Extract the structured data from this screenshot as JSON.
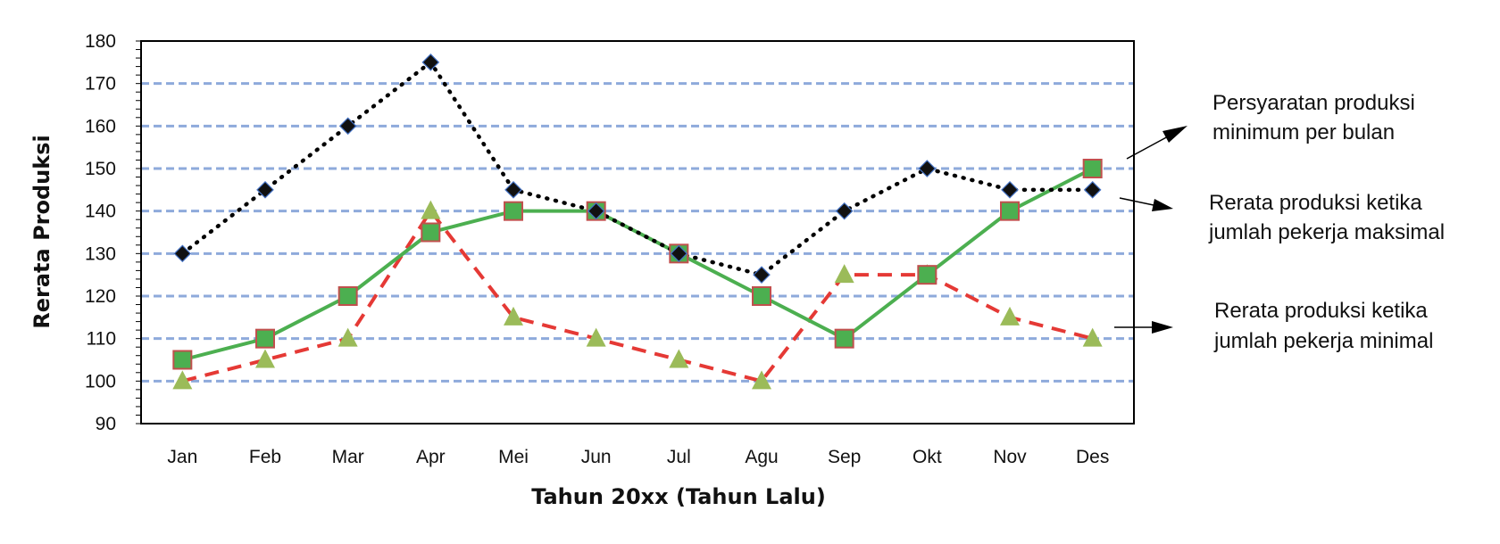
{
  "chart_data": {
    "type": "line",
    "title": "",
    "xlabel": "Tahun 20xx (Tahun Lalu)",
    "ylabel": "Rerata Produksi",
    "ylim": [
      90,
      180
    ],
    "yticks": [
      90,
      100,
      110,
      120,
      130,
      140,
      150,
      160,
      170,
      180
    ],
    "grid": true,
    "categories": [
      "Jan",
      "Feb",
      "Mar",
      "Apr",
      "Mei",
      "Jun",
      "Jul",
      "Agu",
      "Sep",
      "Okt",
      "Nov",
      "Des"
    ],
    "series": [
      {
        "values": [
          130,
          145,
          160,
          175,
          145,
          140,
          130,
          125,
          140,
          150,
          145,
          145
        ],
        "color": "#000000",
        "line": "dotted",
        "marker": "diamond"
      },
      {
        "values": [
          105,
          110,
          120,
          135,
          140,
          140,
          130,
          120,
          110,
          125,
          140,
          150
        ],
        "color": "#4caf50",
        "line": "solid",
        "marker": "square"
      },
      {
        "values": [
          100,
          105,
          110,
          140,
          115,
          110,
          105,
          100,
          125,
          125,
          115,
          110
        ],
        "color": "#e53935",
        "line": "dashed",
        "marker": "triangle"
      }
    ],
    "annotations": [
      {
        "lines": [
          "Persyaratan  produksi",
          "minimum per bulan"
        ]
      },
      {
        "lines": [
          "Rerata produksi ketika",
          "jumlah pekerja maksimal"
        ]
      },
      {
        "lines": [
          "Rerata produksi ketika",
          "jumlah pekerja minimal"
        ]
      }
    ]
  }
}
